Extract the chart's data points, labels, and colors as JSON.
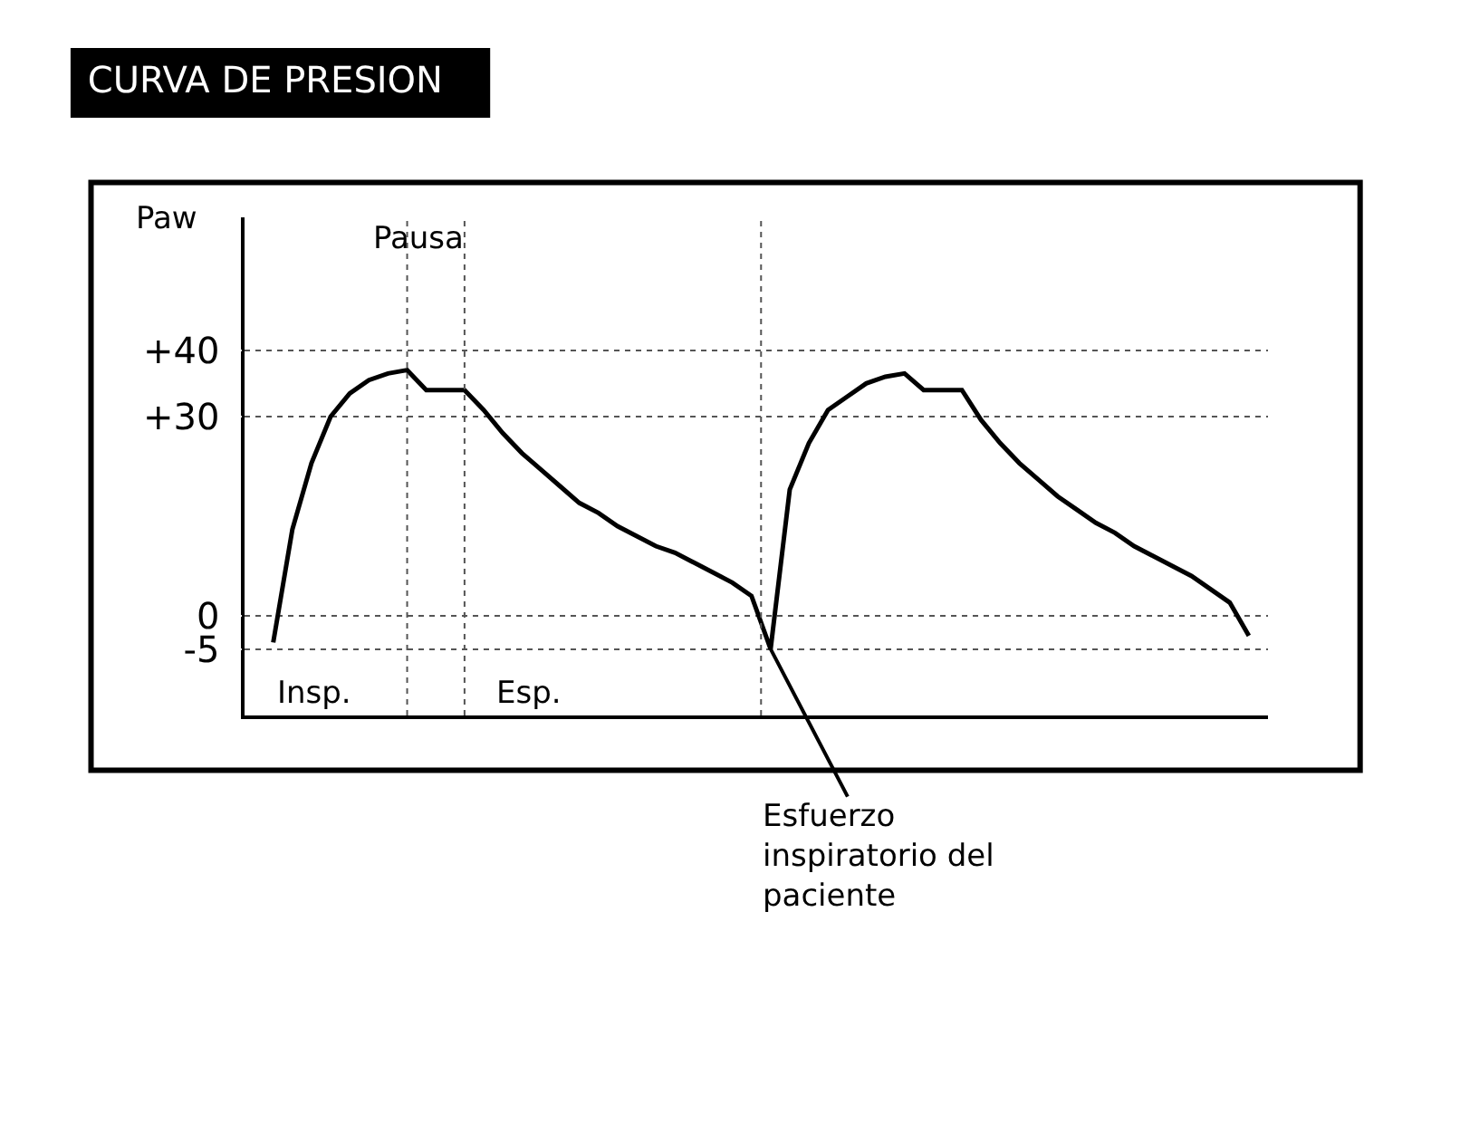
{
  "chart_data": {
    "type": "line",
    "title": "CURVA DE PRESION",
    "ylabel": "Paw",
    "categories": [
      null,
      null,
      null,
      null,
      null,
      null,
      null,
      null,
      null,
      null,
      null,
      null,
      null,
      null,
      null,
      null,
      null,
      null,
      null,
      null,
      null,
      null,
      null,
      null,
      null,
      null,
      null,
      null,
      null,
      null,
      null,
      null,
      null,
      null,
      null,
      null,
      null,
      null,
      null,
      null,
      null,
      null,
      null,
      null,
      null,
      null,
      null,
      null,
      null,
      null,
      null,
      null
    ],
    "series": [
      {
        "color": "#000000",
        "values": [
          -4,
          13,
          23,
          30,
          33.5,
          35.5,
          36.5,
          37,
          34,
          34,
          34,
          31,
          27.5,
          24.5,
          22,
          19.5,
          17,
          15.5,
          13.5,
          12,
          10.5,
          9.5,
          8,
          6.5,
          5,
          3,
          -5,
          19,
          26,
          31,
          33,
          35,
          36,
          36.5,
          34,
          34,
          34,
          29.5,
          26,
          23,
          20.5,
          18,
          16,
          14,
          12.5,
          10.5,
          9,
          7.5,
          6,
          4,
          2,
          -3
        ]
      }
    ],
    "ylim": [
      -15,
      60
    ],
    "yticks": [
      {
        "value": 40,
        "label": "+40"
      },
      {
        "value": 30,
        "label": "+30"
      },
      0,
      -5
    ],
    "grid": "y",
    "tick_labels": "y",
    "legend": false,
    "marker": "none",
    "line_style": "solid",
    "annotations": [
      "Pausa",
      "Insp.",
      "Esp.",
      "Esfuerzo\ninspiratorio del\npaciente"
    ]
  }
}
